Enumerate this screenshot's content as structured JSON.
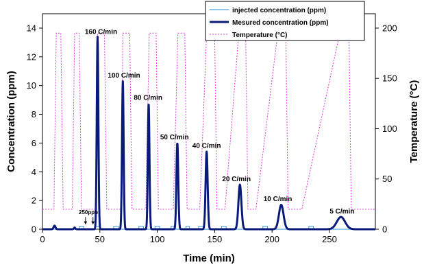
{
  "chart_data": {
    "type": "line",
    "title": "",
    "xlabel": "Time (min)",
    "ylabel": "Concentration (ppm)",
    "y2label": "Temperature (°C)",
    "xlim": [
      0,
      290
    ],
    "ylim": [
      0,
      15
    ],
    "y2lim": [
      0,
      214.3
    ],
    "xticks": [
      0,
      50,
      100,
      150,
      200,
      250
    ],
    "yticks": [
      0,
      2,
      4,
      6,
      8,
      10,
      12,
      14
    ],
    "y2ticks": [
      0,
      50,
      100,
      150,
      200
    ],
    "grid": false,
    "legend_position": "top-right",
    "series": [
      {
        "name": "injected concentration (ppm)",
        "color": "#4da3e0",
        "axis": "left",
        "x": [
          0,
          32,
          32,
          36,
          36,
          46,
          46,
          50,
          50,
          62,
          62,
          66,
          66,
          84,
          84,
          88,
          88,
          98,
          98,
          102,
          102,
          112,
          112,
          116,
          116,
          125,
          125,
          128,
          128,
          136,
          136,
          140,
          140,
          156,
          156,
          160,
          160,
          192,
          192,
          196,
          196,
          232,
          232,
          236,
          236,
          290
        ],
        "y": [
          0,
          0,
          0.2,
          0.2,
          0,
          0,
          0.2,
          0.2,
          0,
          0,
          0.2,
          0.2,
          0,
          0,
          0.2,
          0.2,
          0,
          0,
          0.2,
          0.2,
          0,
          0,
          0.2,
          0.2,
          0,
          0,
          0.2,
          0.2,
          0,
          0,
          0.2,
          0.2,
          0,
          0,
          0.2,
          0.2,
          0,
          0,
          0.2,
          0.2,
          0,
          0,
          0.2,
          0.2,
          0,
          0
        ]
      },
      {
        "name": "Mesured concentration (ppm)",
        "color": "#0a1a7a",
        "axis": "left",
        "peaks": [
          {
            "center": 10.5,
            "height": 0.25,
            "width": 0.8
          },
          {
            "center": 28,
            "height": 0.12,
            "width": 0.6
          },
          {
            "center": 48,
            "height": 13.4,
            "width": 0.7
          },
          {
            "center": 70,
            "height": 10.3,
            "width": 0.7
          },
          {
            "center": 92.5,
            "height": 8.75,
            "width": 0.7
          },
          {
            "center": 117.5,
            "height": 6.0,
            "width": 0.8
          },
          {
            "center": 143,
            "height": 5.4,
            "width": 0.9
          },
          {
            "center": 172,
            "height": 3.1,
            "width": 1.3
          },
          {
            "center": 208,
            "height": 1.7,
            "width": 2.0
          },
          {
            "center": 260,
            "height": 0.85,
            "width": 3.6
          }
        ]
      },
      {
        "name": "Temperature (°C)",
        "color": "#dd33dd",
        "axis": "right",
        "x": [
          0,
          10,
          12,
          16,
          18,
          26,
          28,
          32,
          34,
          47,
          48,
          54,
          56,
          69,
          70,
          76,
          78,
          90,
          93,
          99,
          101,
          114,
          118,
          124,
          126,
          137,
          143,
          150,
          152,
          159,
          171,
          177,
          179,
          186,
          205,
          212,
          214,
          226,
          259,
          267,
          269,
          290
        ],
        "y": [
          20,
          20,
          195,
          195,
          20,
          20,
          195,
          195,
          20,
          20,
          195,
          195,
          20,
          20,
          195,
          195,
          20,
          20,
          195,
          195,
          20,
          20,
          195,
          195,
          20,
          20,
          195,
          195,
          20,
          20,
          195,
          195,
          20,
          20,
          195,
          195,
          20,
          20,
          195,
          195,
          20,
          20
        ]
      }
    ],
    "annotations": [
      {
        "text": "160 C/min",
        "x": 51,
        "y": 13.6
      },
      {
        "text": "100 C/min",
        "x": 71,
        "y": 10.55
      },
      {
        "text": "80 C/min",
        "x": 92,
        "y": 9.0
      },
      {
        "text": "50 C/min",
        "x": 115,
        "y": 6.25
      },
      {
        "text": "40 C/min",
        "x": 143,
        "y": 5.65
      },
      {
        "text": "20 C/min",
        "x": 169,
        "y": 3.35
      },
      {
        "text": "10 C/min",
        "x": 205,
        "y": 1.95
      },
      {
        "text": "5 C/min",
        "x": 261,
        "y": 1.1
      },
      {
        "text": "250ppb",
        "x": 40,
        "y": 1.05
      }
    ]
  }
}
